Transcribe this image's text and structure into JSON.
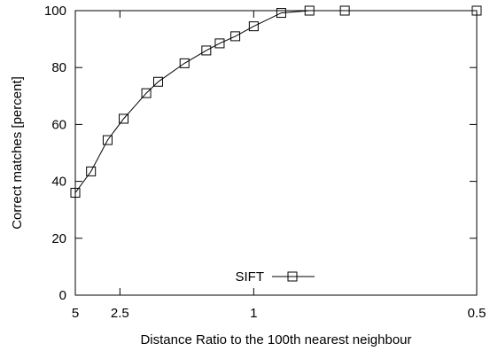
{
  "chart_data": {
    "type": "line",
    "xlabel": "Distance Ratio to the 100th nearest neighbour",
    "ylabel": "Correct matches [percent]",
    "xscale": "reciprocal",
    "xlim": [
      5,
      0.5
    ],
    "ylim": [
      0,
      100
    ],
    "xticks": [
      {
        "value": 5,
        "label": "5"
      },
      {
        "value": 2.5,
        "label": "2.5"
      },
      {
        "value": 1,
        "label": "1"
      },
      {
        "value": 0.5,
        "label": "0.5"
      }
    ],
    "yticks": [
      0,
      20,
      40,
      60,
      80,
      100
    ],
    "grid": false,
    "legend": {
      "position": "bottom-center"
    },
    "series": [
      {
        "name": "SIFT",
        "marker": "square",
        "color": "#000000",
        "x": [
          5.0,
          3.7,
          2.9,
          2.4,
          1.93,
          1.75,
          1.45,
          1.27,
          1.18,
          1.09,
          1.0,
          0.89,
          0.8,
          0.71,
          0.5
        ],
        "y": [
          36,
          43.5,
          54.5,
          62,
          71,
          75,
          81.5,
          86,
          88.5,
          91,
          94.5,
          99.2,
          100,
          100,
          100
        ]
      }
    ]
  }
}
